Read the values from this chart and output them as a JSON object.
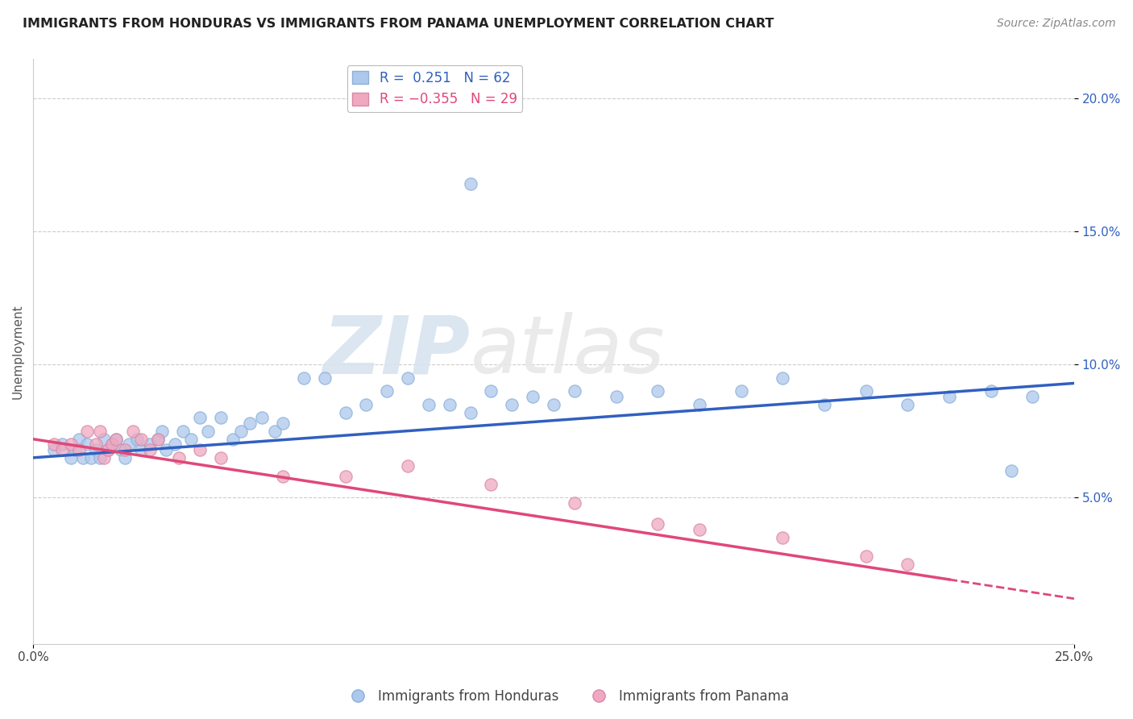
{
  "title": "IMMIGRANTS FROM HONDURAS VS IMMIGRANTS FROM PANAMA UNEMPLOYMENT CORRELATION CHART",
  "source": "Source: ZipAtlas.com",
  "ylabel": "Unemployment",
  "xlim": [
    0.0,
    0.25
  ],
  "ylim": [
    -0.005,
    0.215
  ],
  "yticks": [
    0.05,
    0.1,
    0.15,
    0.2
  ],
  "ytick_labels": [
    "5.0%",
    "10.0%",
    "15.0%",
    "20.0%"
  ],
  "xticks": [
    0.0,
    0.25
  ],
  "xtick_labels": [
    "0.0%",
    "25.0%"
  ],
  "legend_r_entries": [
    {
      "label_r": "R =",
      "label_v": " 0.251",
      "label_n": " N = 62",
      "color": "#a8c8f0"
    },
    {
      "label_r": "R =",
      "label_v": "-0.355",
      "label_n": " N = 29",
      "color": "#f0a0b8"
    }
  ],
  "blue_scatter_x": [
    0.005,
    0.007,
    0.009,
    0.01,
    0.011,
    0.012,
    0.013,
    0.014,
    0.015,
    0.016,
    0.017,
    0.018,
    0.019,
    0.02,
    0.021,
    0.022,
    0.023,
    0.025,
    0.026,
    0.028,
    0.03,
    0.031,
    0.032,
    0.034,
    0.036,
    0.038,
    0.04,
    0.042,
    0.045,
    0.048,
    0.05,
    0.052,
    0.055,
    0.058,
    0.06,
    0.065,
    0.07,
    0.075,
    0.08,
    0.085,
    0.09,
    0.095,
    0.1,
    0.105,
    0.11,
    0.115,
    0.12,
    0.125,
    0.13,
    0.14,
    0.15,
    0.16,
    0.17,
    0.18,
    0.19,
    0.2,
    0.21,
    0.22,
    0.23,
    0.235,
    0.24,
    0.105
  ],
  "blue_scatter_y": [
    0.068,
    0.07,
    0.065,
    0.068,
    0.072,
    0.065,
    0.07,
    0.065,
    0.068,
    0.065,
    0.072,
    0.068,
    0.07,
    0.072,
    0.068,
    0.065,
    0.07,
    0.072,
    0.068,
    0.07,
    0.072,
    0.075,
    0.068,
    0.07,
    0.075,
    0.072,
    0.08,
    0.075,
    0.08,
    0.072,
    0.075,
    0.078,
    0.08,
    0.075,
    0.078,
    0.095,
    0.095,
    0.082,
    0.085,
    0.09,
    0.095,
    0.085,
    0.085,
    0.082,
    0.09,
    0.085,
    0.088,
    0.085,
    0.09,
    0.088,
    0.09,
    0.085,
    0.09,
    0.095,
    0.085,
    0.09,
    0.085,
    0.088,
    0.09,
    0.06,
    0.088,
    0.168
  ],
  "blue_line_x": [
    0.0,
    0.25
  ],
  "blue_line_y": [
    0.065,
    0.093
  ],
  "pink_scatter_x": [
    0.005,
    0.007,
    0.009,
    0.011,
    0.013,
    0.015,
    0.016,
    0.017,
    0.018,
    0.019,
    0.02,
    0.022,
    0.024,
    0.026,
    0.028,
    0.03,
    0.035,
    0.04,
    0.045,
    0.06,
    0.075,
    0.09,
    0.11,
    0.13,
    0.15,
    0.16,
    0.18,
    0.2,
    0.21
  ],
  "pink_scatter_y": [
    0.07,
    0.068,
    0.07,
    0.068,
    0.075,
    0.07,
    0.075,
    0.065,
    0.068,
    0.07,
    0.072,
    0.068,
    0.075,
    0.072,
    0.068,
    0.072,
    0.065,
    0.068,
    0.065,
    0.058,
    0.058,
    0.062,
    0.055,
    0.048,
    0.04,
    0.038,
    0.035,
    0.028,
    0.025
  ],
  "pink_line_x": [
    0.0,
    0.25
  ],
  "pink_line_y": [
    0.072,
    0.012
  ],
  "blue_color": "#adc8ec",
  "pink_color": "#f0a8c0",
  "blue_line_color": "#3060c0",
  "pink_line_color": "#e04878",
  "watermark_zip": "ZIP",
  "watermark_atlas": "atlas",
  "background_color": "#ffffff",
  "grid_color": "#cccccc",
  "title_fontsize": 11.5,
  "source_fontsize": 10,
  "tick_fontsize": 11,
  "ylabel_fontsize": 11
}
